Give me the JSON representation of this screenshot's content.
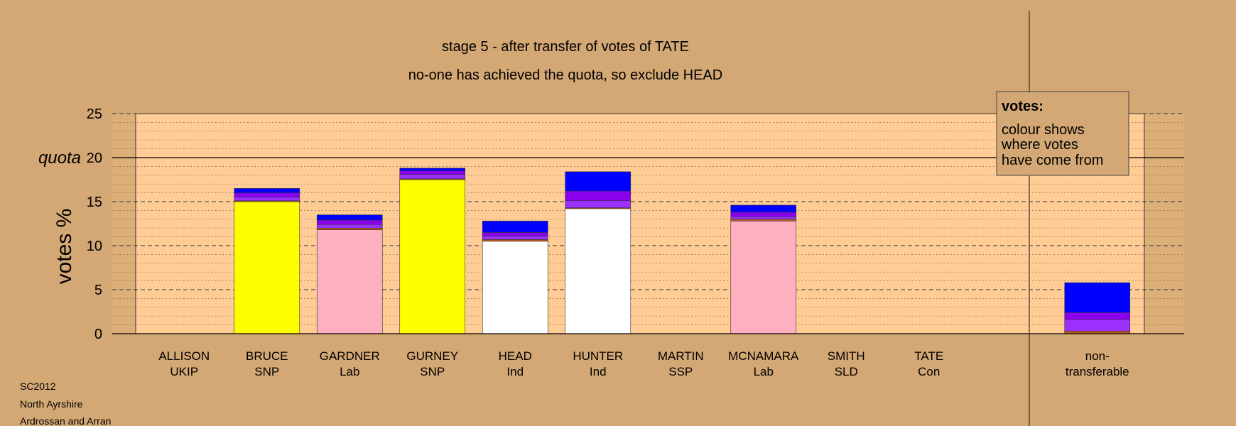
{
  "chart_data": {
    "type": "bar",
    "stacked": true,
    "title": "stage 5 - after transfer of votes of TATE",
    "subtitle": "no-one has achieved the quota, so exclude HEAD",
    "ylabel": "votes %",
    "ylim": [
      0,
      25
    ],
    "yticks": [
      0,
      5,
      10,
      15,
      20,
      25
    ],
    "quota": {
      "label": "quota",
      "value": 20
    },
    "legend": {
      "heading": "votes:",
      "lines": [
        "colour shows",
        "where votes",
        "have come from"
      ]
    },
    "categories": [
      {
        "name": "ALLISON",
        "party": "UKIP"
      },
      {
        "name": "BRUCE",
        "party": "SNP"
      },
      {
        "name": "GARDNER",
        "party": "Lab"
      },
      {
        "name": "GURNEY",
        "party": "SNP"
      },
      {
        "name": "HEAD",
        "party": "Ind"
      },
      {
        "name": "HUNTER",
        "party": "Ind"
      },
      {
        "name": "MARTIN",
        "party": "SSP"
      },
      {
        "name": "MCNAMARA",
        "party": "Lab"
      },
      {
        "name": "SMITH",
        "party": "SLD"
      },
      {
        "name": "TATE",
        "party": "Con"
      },
      {
        "name": "non-",
        "party": "transferable"
      }
    ],
    "bars": [
      {
        "segments": []
      },
      {
        "segments": [
          {
            "value": 15.0,
            "color": "#ffff00"
          },
          {
            "value": 0.1,
            "color": "#c05a1e"
          },
          {
            "value": 0.4,
            "color": "#9b30ff"
          },
          {
            "value": 0.5,
            "color": "#8a00ee"
          },
          {
            "value": 0.5,
            "color": "#0000ff"
          }
        ]
      },
      {
        "segments": [
          {
            "value": 11.8,
            "color": "#ffb0c0"
          },
          {
            "value": 0.2,
            "color": "#c05a1e"
          },
          {
            "value": 0.4,
            "color": "#9b30ff"
          },
          {
            "value": 0.5,
            "color": "#8a00ee"
          },
          {
            "value": 0.6,
            "color": "#0000ff"
          }
        ]
      },
      {
        "segments": [
          {
            "value": 17.5,
            "color": "#ffff00"
          },
          {
            "value": 0.1,
            "color": "#c05a1e"
          },
          {
            "value": 0.5,
            "color": "#9b30ff"
          },
          {
            "value": 0.4,
            "color": "#8a00ee"
          },
          {
            "value": 0.3,
            "color": "#0000ff"
          }
        ]
      },
      {
        "segments": [
          {
            "value": 10.5,
            "color": "#ffffff"
          },
          {
            "value": 0.2,
            "color": "#c05a1e"
          },
          {
            "value": 0.4,
            "color": "#9b30ff"
          },
          {
            "value": 0.4,
            "color": "#8a00ee"
          },
          {
            "value": 1.3,
            "color": "#0000ff"
          }
        ]
      },
      {
        "segments": [
          {
            "value": 14.2,
            "color": "#ffffff"
          },
          {
            "value": 0.1,
            "color": "#c05a1e"
          },
          {
            "value": 0.8,
            "color": "#9b30ff"
          },
          {
            "value": 1.1,
            "color": "#8a00ee"
          },
          {
            "value": 2.2,
            "color": "#0000ff"
          }
        ]
      },
      {
        "segments": []
      },
      {
        "segments": [
          {
            "value": 12.8,
            "color": "#ffb0c0"
          },
          {
            "value": 0.2,
            "color": "#c05a1e"
          },
          {
            "value": 0.3,
            "color": "#9b30ff"
          },
          {
            "value": 0.5,
            "color": "#8a00ee"
          },
          {
            "value": 0.8,
            "color": "#0000ff"
          }
        ]
      },
      {
        "segments": []
      },
      {
        "segments": []
      },
      {
        "segments": [
          {
            "value": 0.3,
            "color": "#c05a1e"
          },
          {
            "value": 1.3,
            "color": "#9b30ff"
          },
          {
            "value": 0.8,
            "color": "#8a00ee"
          },
          {
            "value": 3.4,
            "color": "#0000ff"
          }
        ]
      }
    ]
  },
  "footer": [
    "SC2012",
    "North Ayrshire",
    "Ardrossan and Arran"
  ],
  "colors": {
    "background": "#d4a874",
    "plot_area": "#ffcc96",
    "side_band": "#dcae78"
  }
}
